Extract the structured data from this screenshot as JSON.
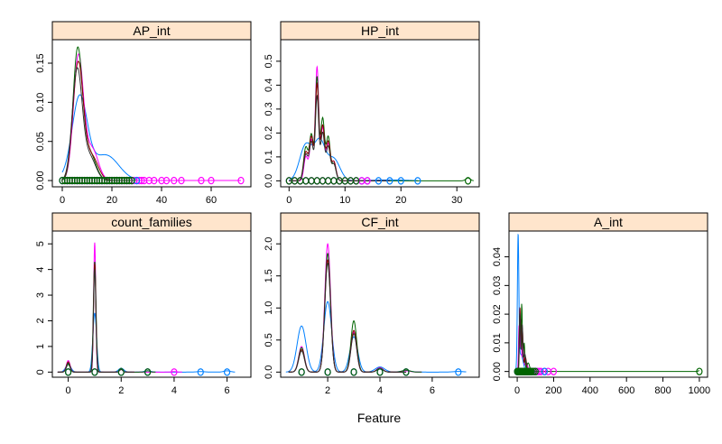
{
  "figure": {
    "xlabel": "Feature",
    "series_colors": [
      "#0080ff",
      "#ff00ff",
      "#006400",
      "#8b0000",
      "#303030"
    ],
    "strip_color": "#ffe5cc"
  },
  "chart_data": [
    {
      "type": "line",
      "title": "AP_int",
      "xlim": [
        -4,
        76
      ],
      "ylim": [
        -0.008,
        0.18
      ],
      "xticks": [
        0,
        20,
        40,
        60
      ],
      "yticks": [
        0.0,
        0.05,
        0.1,
        0.15
      ],
      "ytick_labels": [
        "0.00",
        "0.05",
        "0.10",
        "0.15"
      ],
      "series": [
        {
          "color": "#0080ff",
          "peaks": [
            [
              7,
              0.097,
              3.0
            ],
            [
              18,
              0.03,
              5.0
            ],
            [
              8,
              0.01,
              6
            ]
          ],
          "x_range": [
            0,
            30
          ]
        },
        {
          "color": "#ff00ff",
          "peaks": [
            [
              6.5,
              0.158,
              2.0
            ],
            [
              12,
              0.04,
              2.5
            ]
          ],
          "x_range": [
            0,
            72
          ]
        },
        {
          "color": "#006400",
          "peaks": [
            [
              6.2,
              0.165,
              1.9
            ],
            [
              11,
              0.035,
              2.5
            ]
          ],
          "x_range": [
            0,
            30
          ]
        },
        {
          "color": "#8b0000",
          "peaks": [
            [
              6.4,
              0.15,
              2.1
            ],
            [
              12,
              0.03,
              2.5
            ]
          ],
          "x_range": [
            0,
            30
          ]
        },
        {
          "color": "#303030",
          "peaks": [
            [
              6.0,
              0.14,
              2.0
            ],
            [
              11,
              0.03,
              2.5
            ]
          ],
          "x_range": [
            0,
            30
          ]
        }
      ],
      "rug": [
        {
          "color": "#ff00ff",
          "x": [
            0,
            1,
            2,
            3,
            4,
            5,
            6,
            7,
            8,
            9,
            10,
            11,
            12,
            13,
            14,
            15,
            16,
            17,
            18,
            19,
            20,
            21,
            22,
            23,
            24,
            25,
            26,
            27,
            28,
            29,
            30,
            31,
            32,
            33,
            35,
            37,
            40,
            42,
            45,
            48,
            56,
            60,
            72
          ]
        },
        {
          "color": "#0080ff",
          "x": [
            0,
            2,
            4,
            6,
            8,
            10,
            12,
            14,
            16,
            18,
            20,
            22,
            24,
            26,
            28,
            30
          ]
        },
        {
          "color": "#006400",
          "x": [
            0,
            1,
            2,
            3,
            4,
            5,
            6,
            7,
            8,
            9,
            10,
            11,
            12,
            13,
            14,
            15,
            16,
            17,
            18,
            19,
            20,
            21,
            22,
            23,
            24,
            25,
            26,
            27,
            28
          ]
        }
      ]
    },
    {
      "type": "line",
      "title": "HP_int",
      "xlim": [
        -1.5,
        34
      ],
      "ylim": [
        -0.025,
        0.59
      ],
      "xticks": [
        0,
        10,
        20,
        30
      ],
      "yticks": [
        0.0,
        0.1,
        0.2,
        0.3,
        0.4,
        0.5
      ],
      "ytick_labels": [
        "0.0",
        "0.1",
        "0.2",
        "0.3",
        "0.4",
        "0.5"
      ],
      "series": [
        {
          "color": "#0080ff",
          "peaks": [
            [
              3,
              0.15,
              1.1
            ],
            [
              5.5,
              0.16,
              1.0
            ],
            [
              8,
              0.09,
              1.1
            ],
            [
              18,
              0.004,
              3
            ]
          ],
          "x_range": [
            0,
            23
          ]
        },
        {
          "color": "#ff00ff",
          "peaks": [
            [
              3,
              0.1,
              0.35
            ],
            [
              4,
              0.17,
              0.35
            ],
            [
              5,
              0.47,
              0.3
            ],
            [
              6,
              0.22,
              0.35
            ],
            [
              7,
              0.15,
              0.35
            ],
            [
              8,
              0.08,
              0.4
            ]
          ],
          "x_range": [
            0,
            18
          ]
        },
        {
          "color": "#006400",
          "peaks": [
            [
              3,
              0.14,
              0.4
            ],
            [
              4,
              0.19,
              0.35
            ],
            [
              5,
              0.43,
              0.3
            ],
            [
              6,
              0.26,
              0.35
            ],
            [
              7,
              0.18,
              0.35
            ],
            [
              8,
              0.07,
              0.4
            ],
            [
              32,
              0.012,
              0.4
            ]
          ],
          "x_range": [
            0,
            33
          ]
        },
        {
          "color": "#8b0000",
          "peaks": [
            [
              3,
              0.12,
              0.4
            ],
            [
              4,
              0.18,
              0.35
            ],
            [
              5,
              0.4,
              0.3
            ],
            [
              6,
              0.23,
              0.35
            ],
            [
              7,
              0.16,
              0.35
            ],
            [
              8,
              0.08,
              0.4
            ]
          ],
          "x_range": [
            0,
            18
          ]
        },
        {
          "color": "#303030",
          "peaks": [
            [
              3,
              0.11,
              0.4
            ],
            [
              4,
              0.16,
              0.35
            ],
            [
              5,
              0.35,
              0.3
            ],
            [
              6,
              0.2,
              0.35
            ],
            [
              7,
              0.14,
              0.35
            ],
            [
              8,
              0.07,
              0.4
            ]
          ],
          "x_range": [
            0,
            18
          ]
        }
      ],
      "rug": [
        {
          "color": "#0080ff",
          "x": [
            0,
            1,
            2,
            3,
            4,
            5,
            6,
            7,
            8,
            9,
            10,
            11,
            12,
            13,
            14,
            16,
            18,
            20,
            23
          ]
        },
        {
          "color": "#ff00ff",
          "x": [
            0,
            1,
            2,
            3,
            4,
            5,
            6,
            7,
            8,
            9,
            10,
            11,
            12,
            13,
            14
          ]
        },
        {
          "color": "#006400",
          "x": [
            0,
            1,
            2,
            3,
            4,
            5,
            6,
            7,
            8,
            9,
            10,
            11,
            12,
            32
          ]
        }
      ]
    },
    {
      "type": "line",
      "title": "count_families",
      "xlim": [
        -0.6,
        6.9
      ],
      "ylim": [
        -0.2,
        5.5
      ],
      "xticks": [
        0,
        2,
        4,
        6
      ],
      "yticks": [
        0,
        1,
        2,
        3,
        4,
        5
      ],
      "ytick_labels": [
        "0",
        "1",
        "2",
        "3",
        "4",
        "5"
      ],
      "series": [
        {
          "color": "#0080ff",
          "peaks": [
            [
              0,
              0.3,
              0.1
            ],
            [
              1,
              2.3,
              0.07
            ],
            [
              2,
              0.15,
              0.1
            ],
            [
              3,
              0.05,
              0.12
            ],
            [
              5,
              0.02,
              0.15
            ],
            [
              6,
              0.05,
              0.12
            ]
          ],
          "x_range": [
            -0.4,
            6.3
          ]
        },
        {
          "color": "#ff00ff",
          "peaks": [
            [
              0,
              0.45,
              0.07
            ],
            [
              1,
              5.05,
              0.04
            ],
            [
              2,
              0.12,
              0.06
            ],
            [
              4,
              0.02,
              0.1
            ]
          ],
          "x_range": [
            -0.4,
            4.3
          ]
        },
        {
          "color": "#006400",
          "peaks": [
            [
              0,
              0.3,
              0.07
            ],
            [
              1,
              4.3,
              0.05
            ],
            [
              2,
              0.15,
              0.06
            ],
            [
              3,
              0.05,
              0.08
            ]
          ],
          "x_range": [
            -0.4,
            3.3
          ]
        },
        {
          "color": "#8b0000",
          "peaks": [
            [
              0,
              0.4,
              0.07
            ],
            [
              1,
              4.2,
              0.045
            ],
            [
              2,
              0.1,
              0.06
            ]
          ],
          "x_range": [
            -0.4,
            2.5
          ]
        },
        {
          "color": "#303030",
          "peaks": [
            [
              0,
              0.35,
              0.07
            ],
            [
              1,
              4.0,
              0.045
            ],
            [
              2,
              0.1,
              0.06
            ]
          ],
          "x_range": [
            -0.4,
            2.5
          ]
        }
      ],
      "rug": [
        {
          "color": "#ff00ff",
          "x": [
            0,
            1,
            2,
            3,
            4
          ]
        },
        {
          "color": "#0080ff",
          "x": [
            0,
            1,
            2,
            3,
            5,
            6
          ]
        },
        {
          "color": "#006400",
          "x": [
            0,
            1,
            2,
            3
          ]
        }
      ]
    },
    {
      "type": "line",
      "title": "CF_int",
      "xlim": [
        0.2,
        7.8
      ],
      "ylim": [
        -0.08,
        2.2
      ],
      "xticks": [
        2,
        4,
        6
      ],
      "yticks": [
        0.0,
        0.5,
        1.0,
        1.5,
        2.0
      ],
      "ytick_labels": [
        "0.0",
        "0.5",
        "1.0",
        "1.5",
        "2.0"
      ],
      "series": [
        {
          "color": "#0080ff",
          "peaks": [
            [
              1,
              0.72,
              0.17
            ],
            [
              2,
              1.1,
              0.15
            ],
            [
              3,
              0.55,
              0.15
            ],
            [
              4,
              0.08,
              0.18
            ],
            [
              5,
              0.02,
              0.2
            ],
            [
              7,
              0.01,
              0.2
            ]
          ],
          "x_range": [
            0.4,
            7.3
          ]
        },
        {
          "color": "#ff00ff",
          "peaks": [
            [
              1,
              0.4,
              0.11
            ],
            [
              2,
              2.0,
              0.11
            ],
            [
              3,
              0.62,
              0.11
            ],
            [
              4,
              0.07,
              0.12
            ],
            [
              5,
              0.02,
              0.15
            ]
          ],
          "x_range": [
            0.5,
            5.6
          ]
        },
        {
          "color": "#006400",
          "peaks": [
            [
              1,
              0.38,
              0.11
            ],
            [
              2,
              1.85,
              0.11
            ],
            [
              3,
              0.8,
              0.11
            ],
            [
              4,
              0.05,
              0.12
            ],
            [
              5,
              0.03,
              0.15
            ]
          ],
          "x_range": [
            0.5,
            5.6
          ]
        },
        {
          "color": "#8b0000",
          "peaks": [
            [
              1,
              0.35,
              0.11
            ],
            [
              2,
              1.75,
              0.11
            ],
            [
              3,
              0.65,
              0.11
            ],
            [
              4,
              0.06,
              0.12
            ]
          ],
          "x_range": [
            0.5,
            5.0
          ]
        },
        {
          "color": "#303030",
          "peaks": [
            [
              1,
              0.33,
              0.11
            ],
            [
              2,
              1.7,
              0.11
            ],
            [
              3,
              0.6,
              0.11
            ],
            [
              4,
              0.06,
              0.12
            ]
          ],
          "x_range": [
            0.5,
            5.0
          ]
        }
      ],
      "rug": [
        {
          "color": "#ff00ff",
          "x": [
            1,
            2,
            3,
            4,
            5
          ]
        },
        {
          "color": "#0080ff",
          "x": [
            1,
            2,
            3,
            4,
            5,
            7
          ]
        },
        {
          "color": "#006400",
          "x": [
            1,
            2,
            3,
            4,
            5
          ]
        }
      ]
    },
    {
      "type": "line",
      "title": "A_int",
      "xlim": [
        -45,
        1045
      ],
      "ylim": [
        -0.002,
        0.049
      ],
      "xticks": [
        0,
        200,
        400,
        600,
        800,
        1000
      ],
      "yticks": [
        0.0,
        0.01,
        0.02,
        0.03,
        0.04
      ],
      "ytick_labels": [
        "0.00",
        "0.01",
        "0.02",
        "0.03",
        "0.04"
      ],
      "series": [
        {
          "color": "#0080ff",
          "peaks": [
            [
              5,
              0.045,
              4.0
            ],
            [
              20,
              0.006,
              12
            ]
          ],
          "x_range": [
            -15,
            160
          ]
        },
        {
          "color": "#ff00ff",
          "peaks": [
            [
              10,
              0.016,
              3.0
            ],
            [
              20,
              0.018,
              3.0
            ],
            [
              32,
              0.009,
              4
            ],
            [
              50,
              0.003,
              8
            ]
          ],
          "x_range": [
            -10,
            200
          ]
        },
        {
          "color": "#006400",
          "peaks": [
            [
              15,
              0.02,
              3.0
            ],
            [
              25,
              0.024,
              3.0
            ],
            [
              38,
              0.01,
              4
            ],
            [
              60,
              0.003,
              8
            ],
            [
              1000,
              0.0003,
              6
            ]
          ],
          "x_range": [
            -10,
            1000
          ]
        },
        {
          "color": "#8b0000",
          "peaks": [
            [
              15,
              0.022,
              3.5
            ],
            [
              28,
              0.015,
              4
            ],
            [
              45,
              0.005,
              6
            ]
          ],
          "x_range": [
            -10,
            120
          ]
        },
        {
          "color": "#303030",
          "peaks": [
            [
              14,
              0.02,
              3.5
            ],
            [
              27,
              0.016,
              4
            ],
            [
              42,
              0.006,
              6
            ]
          ],
          "x_range": [
            -10,
            120
          ]
        }
      ],
      "rug": [
        {
          "color": "#ff00ff",
          "x": [
            0,
            5,
            10,
            15,
            20,
            25,
            30,
            35,
            40,
            45,
            50,
            55,
            60,
            70,
            80,
            90,
            100,
            110,
            120,
            130,
            150,
            170,
            200
          ]
        },
        {
          "color": "#0080ff",
          "x": [
            0,
            5,
            10,
            15,
            20,
            25,
            30,
            40,
            50,
            60,
            80,
            100,
            150
          ]
        },
        {
          "color": "#006400",
          "x": [
            0,
            5,
            10,
            15,
            20,
            25,
            30,
            35,
            40,
            45,
            50,
            55,
            60,
            65,
            70,
            75,
            80,
            90,
            100,
            1000
          ]
        }
      ]
    }
  ]
}
